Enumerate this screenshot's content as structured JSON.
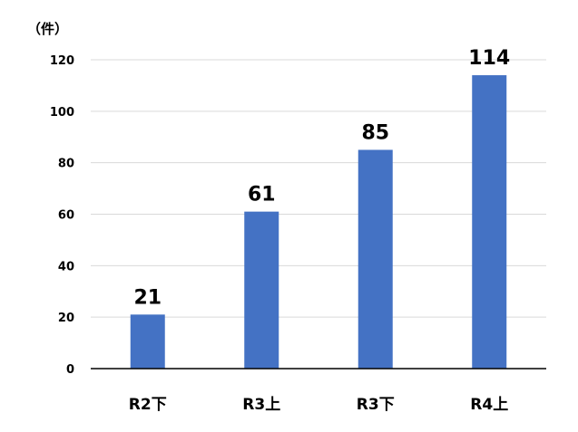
{
  "chart_data": {
    "type": "bar",
    "unit_label": "（件）",
    "categories": [
      "R2下",
      "R3上",
      "R3下",
      "R4上"
    ],
    "values": [
      21,
      61,
      85,
      114
    ],
    "ylim": [
      0,
      120
    ],
    "yticks": [
      "0",
      "20",
      "40",
      "60",
      "80",
      "100",
      "120"
    ],
    "data_labels": [
      "21",
      "61",
      "85",
      "114"
    ],
    "grid": true,
    "legend": "none",
    "bar_color": "#4472C4",
    "grid_color": "#D9D9D9",
    "axis_color": "#000000"
  }
}
